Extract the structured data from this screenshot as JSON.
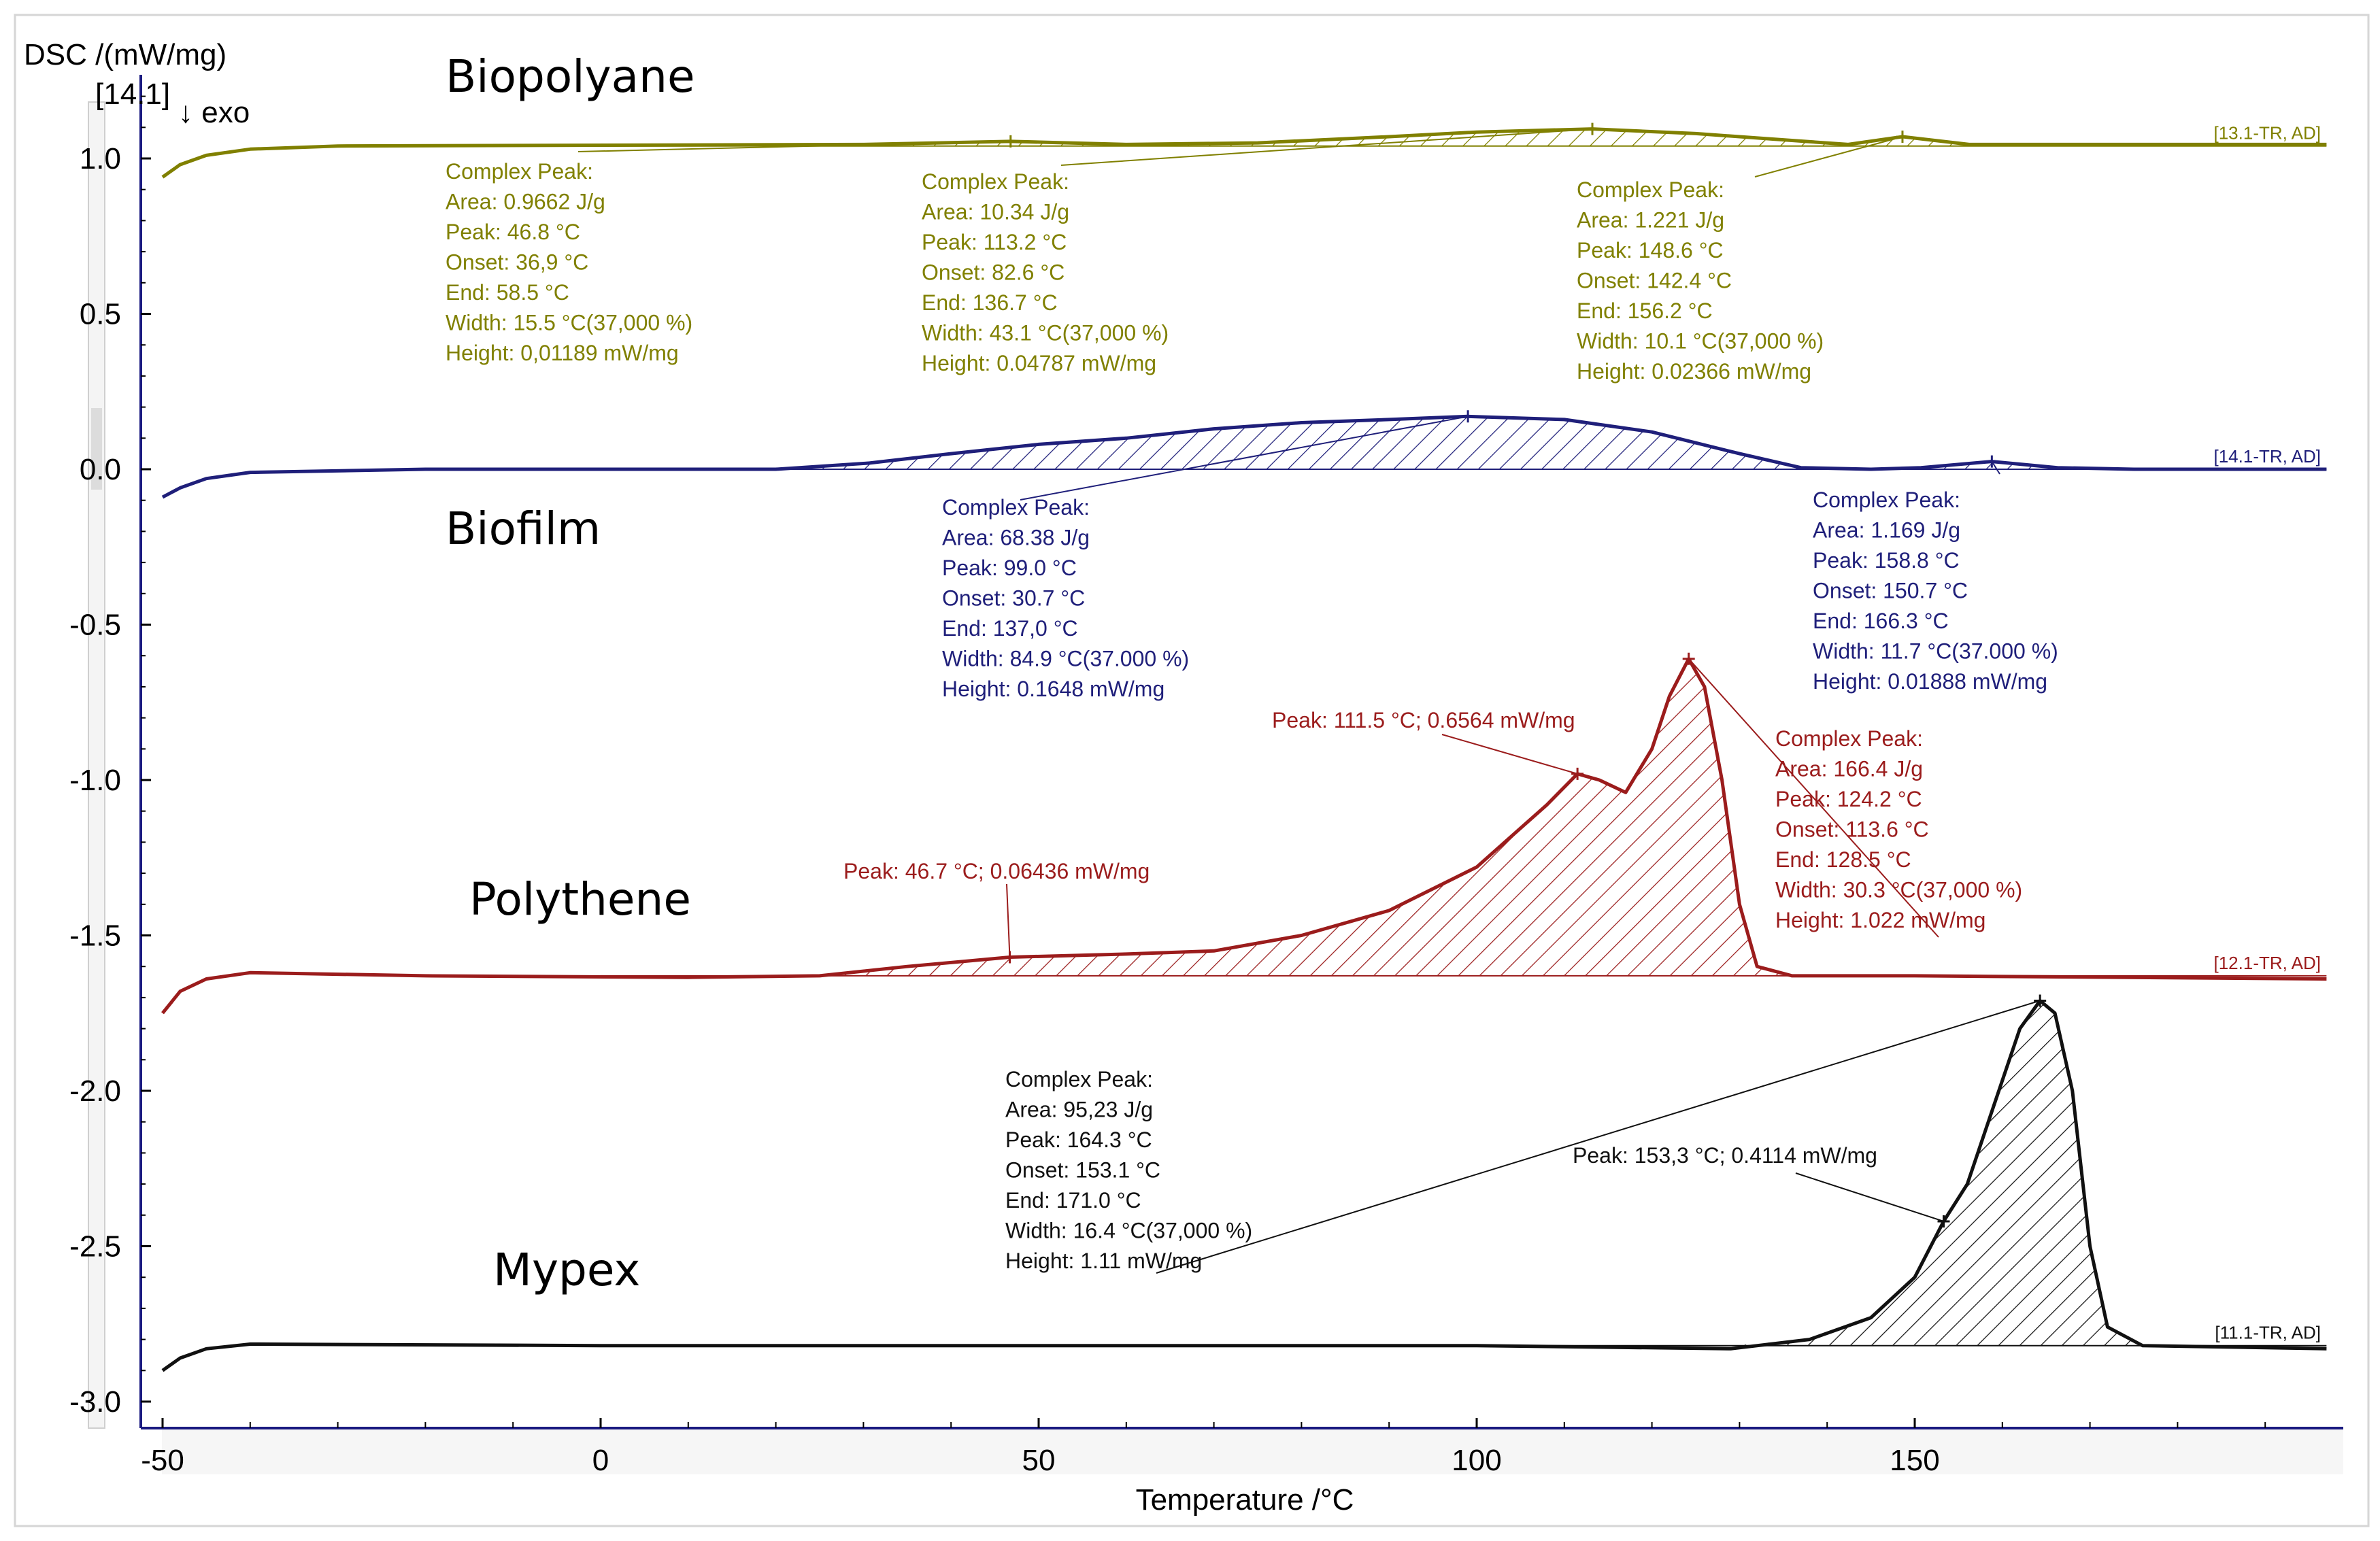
{
  "chart_data": {
    "type": "line",
    "title": "",
    "xlabel": "Temperature /°C",
    "ylabel": "DSC /(mW/mg)",
    "y_marker": "[14.1]",
    "exo_label": "↓ exo",
    "xlim": [
      -50,
      197
    ],
    "ylim": [
      -3.1,
      1.25
    ],
    "xticks": [
      -50,
      0,
      50,
      100,
      150
    ],
    "xtick_labels": [
      "-50",
      "0",
      "50",
      "100",
      "150"
    ],
    "yticks": [
      1.0,
      0.5,
      0.0,
      -0.5,
      -1.0,
      -1.5,
      -2.0,
      -2.5,
      -3.0
    ],
    "ytick_labels": [
      "1.0",
      "0.5",
      "0.0",
      "-0.5",
      "-1.0",
      "-1.5",
      "-2.0",
      "-2.5",
      "-3.0"
    ],
    "series": [
      {
        "name": "Biopolyane",
        "tag": "[13.1-TR, AD]",
        "color": "#808000",
        "baseline": 1.04,
        "curve": [
          [
            -50,
            0.94
          ],
          [
            -48,
            0.98
          ],
          [
            -45,
            1.01
          ],
          [
            -40,
            1.03
          ],
          [
            -30,
            1.04
          ],
          [
            30,
            1.045
          ],
          [
            46.8,
            1.055
          ],
          [
            60,
            1.045
          ],
          [
            75,
            1.05
          ],
          [
            90,
            1.07
          ],
          [
            100,
            1.085
          ],
          [
            113.2,
            1.095
          ],
          [
            125,
            1.08
          ],
          [
            135,
            1.06
          ],
          [
            142.4,
            1.045
          ],
          [
            148.6,
            1.07
          ],
          [
            156.2,
            1.045
          ],
          [
            175,
            1.045
          ],
          [
            197,
            1.045
          ]
        ],
        "annotations": [
          {
            "lines": [
              "Complex Peak:",
              "Area:    0.9662 J/g",
              "Peak:   46.8 °C",
              "Onset:  36,9 °C",
              "End:    58.5 °C",
              "Width:  15.5 °C(37,000 %)",
              "Height:  0,01189 mW/mg"
            ],
            "point": [
              46.8,
              1.055
            ]
          },
          {
            "lines": [
              "Complex Peak:",
              "Area:     10.34 J/g",
              "Peak:    113.2 °C",
              "Onset:   82.6 °C",
              "End:     136.7 °C",
              "Width:   43.1 °C(37,000 %)",
              "Height:   0.04787 mW/mg"
            ],
            "point": [
              113.2,
              1.095
            ]
          },
          {
            "lines": [
              "Complex Peak:",
              "Area:      1.221 J/g",
              "Peak:    148.6 °C",
              "Onset:   142.4 °C",
              "End:     156.2 °C",
              "Width:    10.1 °C(37,000 %)",
              "Height:   0.02366 mW/mg"
            ],
            "point": [
              148.6,
              1.07
            ]
          }
        ]
      },
      {
        "name": "Biofilm",
        "tag": "[14.1-TR, AD]",
        "color": "#1f1f7a",
        "baseline": 0.0,
        "curve": [
          [
            -50,
            -0.09
          ],
          [
            -48,
            -0.06
          ],
          [
            -45,
            -0.03
          ],
          [
            -40,
            -0.01
          ],
          [
            -20,
            0.0
          ],
          [
            20,
            0.0
          ],
          [
            30.7,
            0.02
          ],
          [
            40,
            0.05
          ],
          [
            50,
            0.08
          ],
          [
            60,
            0.1
          ],
          [
            70,
            0.13
          ],
          [
            80,
            0.15
          ],
          [
            90,
            0.16
          ],
          [
            99,
            0.17
          ],
          [
            110,
            0.16
          ],
          [
            120,
            0.12
          ],
          [
            130,
            0.05
          ],
          [
            137,
            0.005
          ],
          [
            145,
            0.0
          ],
          [
            150.7,
            0.005
          ],
          [
            158.8,
            0.025
          ],
          [
            166.3,
            0.005
          ],
          [
            175,
            0.0
          ],
          [
            197,
            0.0
          ]
        ],
        "annotations": [
          {
            "lines": [
              "Complex Peak:",
              "Area:     68.38 J/g",
              "Peak:     99.0 °C",
              "Onset:   30.7 °C",
              "End:     137,0 °C",
              "Width:   84.9 °C(37.000 %)",
              "Height:    0.1648 mW/mg"
            ],
            "point": [
              99,
              0.17
            ]
          },
          {
            "lines": [
              "Complex Peak:",
              "Area:          1.169 J/g",
              "Peak:     158.8 °C",
              "Onset:   150.7 °C",
              "End:      166.3 °C",
              "Width:    11.7 °C(37.000 %)",
              "Height:    0.01888 mW/mg"
            ],
            "point": [
              158.8,
              0.025
            ]
          }
        ]
      },
      {
        "name": "Polythene",
        "tag": "[12.1-TR, AD]",
        "color": "#9b1c1c",
        "baseline": -1.63,
        "curve": [
          [
            -50,
            -1.75
          ],
          [
            -48,
            -1.68
          ],
          [
            -45,
            -1.64
          ],
          [
            -40,
            -1.62
          ],
          [
            -20,
            -1.63
          ],
          [
            10,
            -1.635
          ],
          [
            25,
            -1.63
          ],
          [
            35,
            -1.6
          ],
          [
            46.7,
            -1.57
          ],
          [
            60,
            -1.56
          ],
          [
            70,
            -1.55
          ],
          [
            80,
            -1.5
          ],
          [
            90,
            -1.42
          ],
          [
            100,
            -1.28
          ],
          [
            108,
            -1.08
          ],
          [
            111.5,
            -0.98
          ],
          [
            114,
            -1.0
          ],
          [
            117,
            -1.04
          ],
          [
            120,
            -0.9
          ],
          [
            122,
            -0.73
          ],
          [
            124.2,
            -0.61
          ],
          [
            126,
            -0.7
          ],
          [
            128,
            -1.0
          ],
          [
            130,
            -1.4
          ],
          [
            132,
            -1.6
          ],
          [
            136,
            -1.63
          ],
          [
            150,
            -1.63
          ],
          [
            197,
            -1.64
          ]
        ],
        "annotations": [
          {
            "lines": [
              "Peak: 46.7 °C; 0.06436 mW/mg"
            ],
            "point": [
              46.7,
              -1.57
            ]
          },
          {
            "lines": [
              "Peak: 111.5 °C; 0.6564 mW/mg"
            ],
            "point": [
              111.5,
              -0.98
            ]
          },
          {
            "lines": [
              "Complex Peak:",
              "Area:    166.4 J/g",
              "Peak:    124.2 °C",
              "Onset:   113.6 °C",
              "End:     128.5 °C",
              "Width:    30.3 °C(37,000 %)",
              "Height:     1.022 mW/mg"
            ],
            "point": [
              124.2,
              -0.61
            ]
          }
        ]
      },
      {
        "name": "Mypex",
        "tag": "[11.1-TR, AD]",
        "color": "#111111",
        "baseline": -2.82,
        "curve": [
          [
            -50,
            -2.9
          ],
          [
            -48,
            -2.86
          ],
          [
            -45,
            -2.83
          ],
          [
            -40,
            -2.815
          ],
          [
            0,
            -2.82
          ],
          [
            100,
            -2.82
          ],
          [
            129,
            -2.83
          ],
          [
            138,
            -2.8
          ],
          [
            145,
            -2.73
          ],
          [
            150,
            -2.6
          ],
          [
            153.3,
            -2.42
          ],
          [
            156,
            -2.3
          ],
          [
            159,
            -2.05
          ],
          [
            162,
            -1.8
          ],
          [
            164.3,
            -1.71
          ],
          [
            166,
            -1.75
          ],
          [
            168,
            -2.0
          ],
          [
            170,
            -2.5
          ],
          [
            172,
            -2.76
          ],
          [
            176,
            -2.82
          ],
          [
            197,
            -2.83
          ]
        ],
        "annotations": [
          {
            "lines": [
              "Complex Peak:",
              "Area:       95,23 J/g",
              "Peak:     164.3 °C",
              "Onset:   153.1 °C",
              "End:      171.0 °C",
              "Width:     16.4 °C(37,000 %)",
              "Height:     1.11 mW/mg"
            ],
            "point": [
              164.3,
              -1.71
            ]
          },
          {
            "lines": [
              "Peak: 153,3 °C; 0.4114 mW/mg"
            ],
            "point": [
              153.3,
              -2.42
            ]
          }
        ]
      }
    ]
  }
}
